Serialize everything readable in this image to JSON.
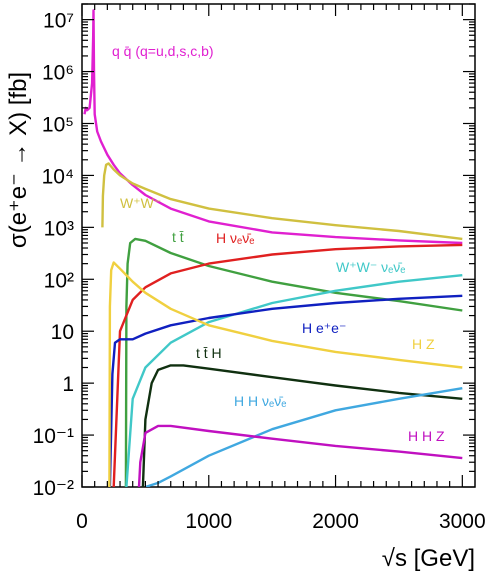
{
  "chart_data": {
    "type": "line",
    "xlabel": "√s [GeV]",
    "ylabel": "σ(e⁺e⁻ → X) [fb]",
    "xlim": [
      0,
      3100
    ],
    "ylim": [
      0.01,
      20000000
    ],
    "yscale": "log",
    "grid": false,
    "x_ticks": [
      {
        "value": 0,
        "label": "0"
      },
      {
        "value": 1000,
        "label": "1000"
      },
      {
        "value": 2000,
        "label": "2000"
      },
      {
        "value": 3000,
        "label": "3000"
      }
    ],
    "y_ticks": [
      {
        "value": 0.01,
        "label": "10⁻²"
      },
      {
        "value": 0.1,
        "label": "10⁻¹"
      },
      {
        "value": 1,
        "label": "1"
      },
      {
        "value": 10,
        "label": "10"
      },
      {
        "value": 100,
        "label": "10²"
      },
      {
        "value": 1000,
        "label": "10³"
      },
      {
        "value": 10000,
        "label": "10⁴"
      },
      {
        "value": 100000,
        "label": "10⁵"
      },
      {
        "value": 1000000,
        "label": "10⁶"
      },
      {
        "value": 10000000,
        "label": "10⁷"
      }
    ],
    "series": [
      {
        "name": "q q̄ (q=u,d,s,c,b)",
        "color": "#e020d0",
        "x": [
          20,
          30,
          40,
          60,
          80,
          88,
          91,
          95,
          100,
          120,
          150,
          200,
          250,
          300,
          400,
          500,
          700,
          1000,
          1500,
          2000,
          2500,
          3000
        ],
        "y": [
          150000,
          200000,
          180000,
          200000,
          600000,
          5000000,
          15000000,
          1000000,
          150000,
          70000,
          45000,
          25000,
          16000,
          11000,
          6500,
          4200,
          2300,
          1300,
          800,
          650,
          560,
          500
        ]
      },
      {
        "name": "W⁺W⁻",
        "color": "#d0c040",
        "x": [
          161,
          165,
          175,
          190,
          210,
          250,
          300,
          400,
          500,
          700,
          1000,
          1500,
          2000,
          2500,
          3000
        ],
        "y": [
          1000,
          4000,
          10000,
          16000,
          17000,
          13000,
          10000,
          7000,
          5500,
          3500,
          2300,
          1500,
          1100,
          850,
          600
        ]
      },
      {
        "name": "t t̄",
        "color": "#40a040",
        "x": [
          346,
          350,
          360,
          380,
          420,
          500,
          700,
          1000,
          1500,
          2000,
          2500,
          3000
        ],
        "y": [
          0.01,
          30,
          200,
          500,
          600,
          550,
          320,
          180,
          90,
          55,
          38,
          25
        ]
      },
      {
        "name": "H νₑν̄ₑ",
        "color": "#e02020",
        "x": [
          250,
          300,
          400,
          500,
          700,
          1000,
          1500,
          2000,
          2500,
          3000
        ],
        "y": [
          0.01,
          10,
          40,
          70,
          130,
          200,
          300,
          380,
          430,
          460
        ]
      },
      {
        "name": "W⁺W⁻ νₑν̄ₑ",
        "color": "#40c8c8",
        "x": [
          350,
          400,
          500,
          700,
          1000,
          1500,
          2000,
          2500,
          3000
        ],
        "y": [
          0.01,
          0.5,
          2,
          6,
          15,
          35,
          60,
          90,
          120
        ]
      },
      {
        "name": "H e⁺e⁻",
        "color": "#1020c0",
        "x": [
          220,
          240,
          260,
          300,
          400,
          500,
          700,
          1000,
          1500,
          2000,
          2500,
          3000
        ],
        "y": [
          0.01,
          1.5,
          6,
          7,
          7,
          9,
          13,
          18,
          27,
          35,
          42,
          48
        ]
      },
      {
        "name": "H Z",
        "color": "#f0d040",
        "x": [
          216,
          220,
          230,
          250,
          300,
          400,
          500,
          700,
          1000,
          1500,
          2000,
          2500,
          3000
        ],
        "y": [
          0.01,
          30,
          150,
          210,
          160,
          90,
          55,
          27,
          13,
          6.5,
          4,
          2.8,
          2
        ]
      },
      {
        "name": "t t̄ H",
        "color": "#103010",
        "x": [
          480,
          500,
          550,
          600,
          700,
          800,
          1000,
          1500,
          2000,
          2500,
          3000
        ],
        "y": [
          0.01,
          0.2,
          1,
          1.8,
          2.2,
          2.2,
          1.9,
          1.3,
          0.9,
          0.65,
          0.5
        ]
      },
      {
        "name": "H H νₑν̄ₑ",
        "color": "#40a8e0",
        "x": [
          500,
          600,
          700,
          1000,
          1500,
          2000,
          2500,
          3000
        ],
        "y": [
          0.01,
          0.012,
          0.016,
          0.04,
          0.13,
          0.3,
          0.5,
          0.8
        ]
      },
      {
        "name": "H H Z",
        "color": "#c010c0",
        "x": [
          450,
          460,
          500,
          600,
          700,
          1000,
          1500,
          2000,
          2500,
          3000
        ],
        "y": [
          0.01,
          0.03,
          0.11,
          0.15,
          0.15,
          0.12,
          0.085,
          0.062,
          0.048,
          0.036
        ]
      }
    ]
  }
}
